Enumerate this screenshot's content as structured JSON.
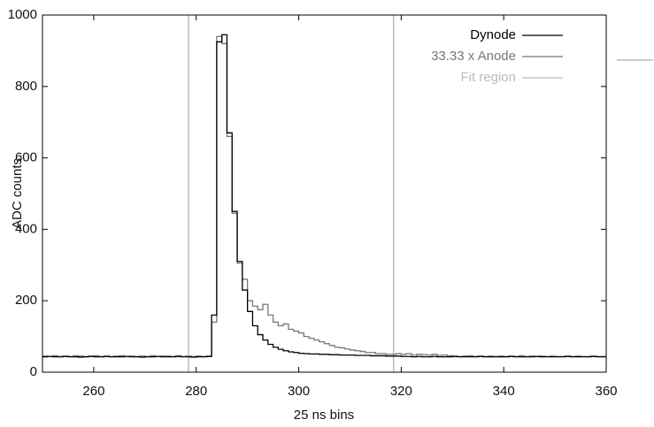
{
  "chart_data": {
    "type": "step",
    "xlabel": "25 ns bins",
    "ylabel": "ADC counts",
    "xlim": [
      250,
      360
    ],
    "xticks": [
      260,
      280,
      300,
      320,
      340,
      360
    ],
    "ylim": [
      0,
      1000
    ],
    "yticks": [
      0,
      200,
      400,
      600,
      800,
      1000
    ],
    "x": [
      250,
      251,
      252,
      253,
      254,
      255,
      256,
      257,
      258,
      259,
      260,
      261,
      262,
      263,
      264,
      265,
      266,
      267,
      268,
      269,
      270,
      271,
      272,
      273,
      274,
      275,
      276,
      277,
      278,
      279,
      280,
      281,
      282,
      283,
      284,
      285,
      286,
      287,
      288,
      289,
      290,
      291,
      292,
      293,
      294,
      295,
      296,
      297,
      298,
      299,
      300,
      301,
      302,
      303,
      304,
      305,
      306,
      307,
      308,
      309,
      310,
      311,
      312,
      313,
      314,
      315,
      316,
      317,
      318,
      319,
      320,
      321,
      322,
      323,
      324,
      325,
      326,
      327,
      328,
      329,
      330,
      331,
      332,
      333,
      334,
      335,
      336,
      337,
      338,
      339,
      340,
      341,
      342,
      343,
      344,
      345,
      346,
      347,
      348,
      349,
      350,
      351,
      352,
      353,
      354,
      355,
      356,
      357,
      358,
      359
    ],
    "series": [
      {
        "name": "Dynode",
        "color": "#000000",
        "values": [
          43,
          44,
          43,
          43,
          44,
          43,
          43,
          42,
          43,
          44,
          43,
          43,
          44,
          43,
          43,
          43,
          44,
          43,
          43,
          42,
          43,
          43,
          44,
          43,
          43,
          43,
          44,
          43,
          43,
          42,
          43,
          43,
          44,
          160,
          925,
          945,
          670,
          450,
          310,
          230,
          170,
          130,
          105,
          90,
          78,
          70,
          64,
          60,
          57,
          55,
          53,
          52,
          51,
          51,
          50,
          50,
          49,
          49,
          48,
          48,
          48,
          47,
          47,
          47,
          46,
          46,
          46,
          45,
          45,
          45,
          44,
          44,
          43,
          44,
          43,
          43,
          44,
          43,
          43,
          43,
          44,
          43,
          43,
          43,
          43,
          44,
          43,
          43,
          43,
          43,
          43,
          44,
          43,
          43,
          43,
          43,
          44,
          43,
          43,
          43,
          43,
          43,
          44,
          43,
          43,
          43,
          43,
          44,
          43,
          43
        ]
      },
      {
        "name": "33.33 x Anode",
        "color": "#777777",
        "values": [
          45,
          44,
          46,
          44,
          45,
          44,
          46,
          45,
          44,
          45,
          46,
          44,
          45,
          44,
          45,
          46,
          44,
          45,
          44,
          45,
          44,
          46,
          44,
          45,
          45,
          44,
          46,
          44,
          45,
          44,
          45,
          44,
          45,
          140,
          940,
          920,
          660,
          445,
          305,
          260,
          200,
          185,
          175,
          190,
          160,
          140,
          130,
          135,
          120,
          115,
          110,
          100,
          95,
          90,
          85,
          80,
          75,
          70,
          68,
          65,
          62,
          60,
          58,
          55,
          55,
          52,
          52,
          50,
          50,
          52,
          50,
          52,
          48,
          50,
          49,
          48,
          50,
          47,
          48,
          46,
          45,
          44,
          45,
          46,
          44,
          45,
          44,
          45,
          44,
          45,
          44,
          45,
          44,
          46,
          44,
          45,
          44,
          45,
          44,
          45,
          44,
          44,
          45,
          44,
          45,
          44,
          44,
          45,
          44,
          44
        ]
      }
    ],
    "fit_region": {
      "name": "Fit region",
      "color": "#bbbbbb",
      "x": [
        278.5,
        318.5
      ]
    }
  }
}
